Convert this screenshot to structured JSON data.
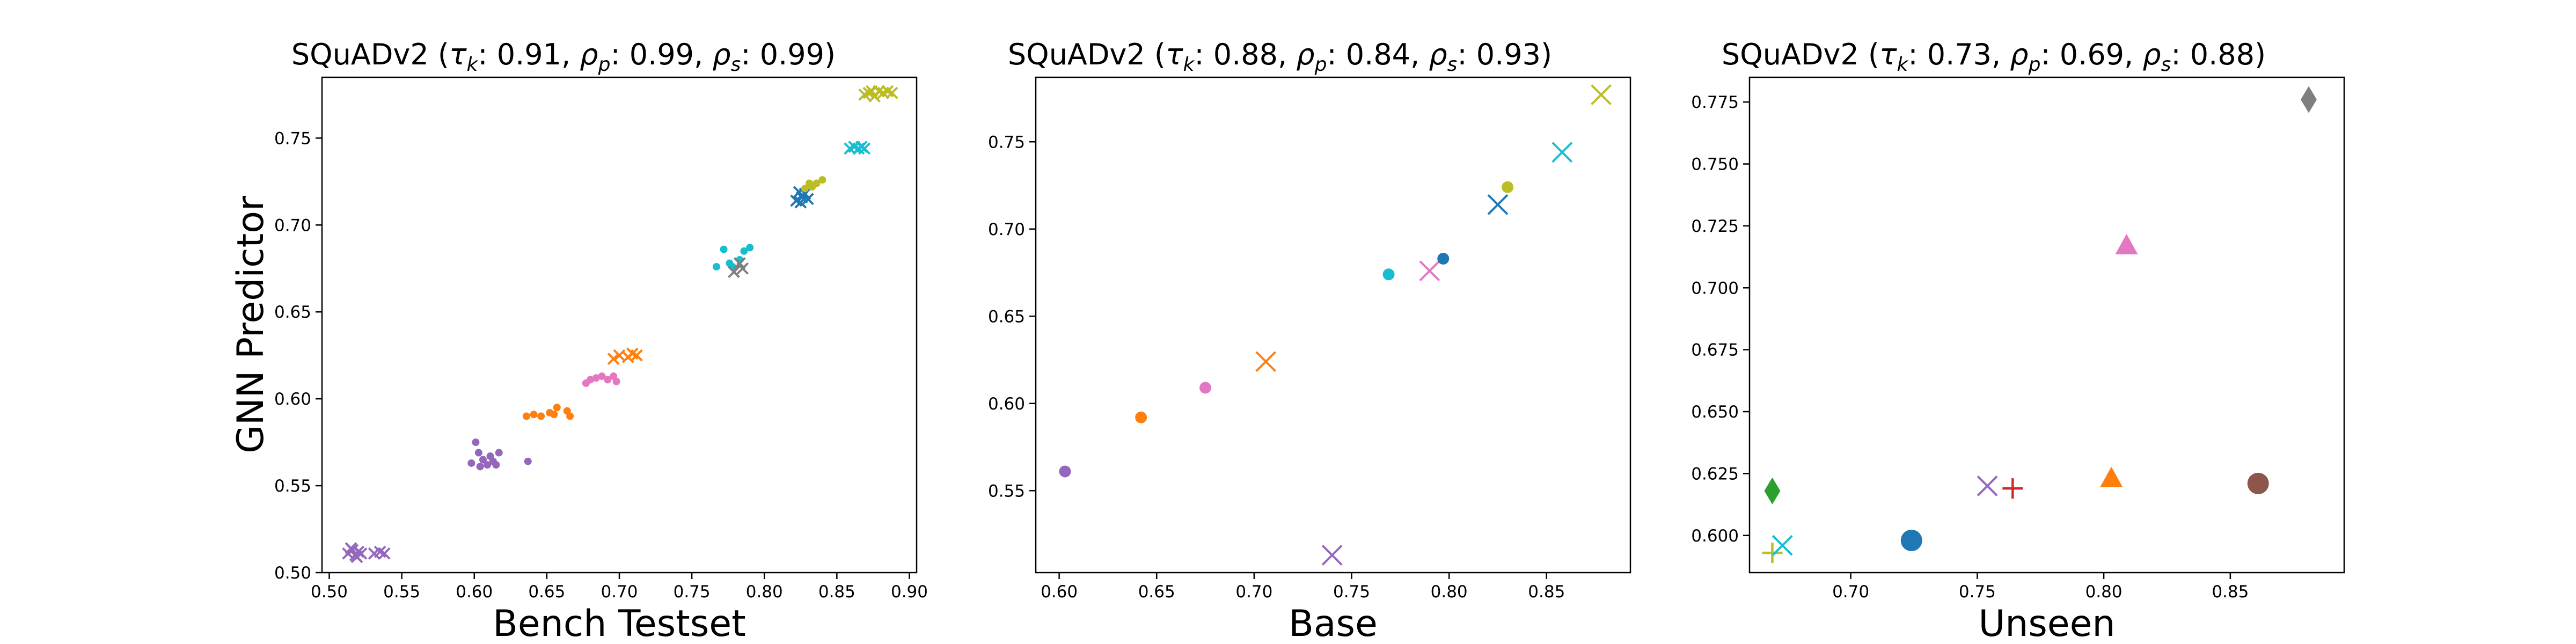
{
  "palette": {
    "purple": "#9467bd",
    "orange": "#ff7f0e",
    "pink": "#e377c2",
    "cyan": "#17becf",
    "gray": "#7f7f7f",
    "blue": "#1f77b4",
    "olive": "#bcbd22",
    "green": "#2ca02c",
    "brown": "#8c564b",
    "red": "#d62728"
  },
  "chart_data": [
    {
      "type": "scatter",
      "title": {
        "dataset": "SQuADv2",
        "tau_k": "0.91",
        "rho_p": "0.99",
        "rho_s": "0.99"
      },
      "xlabel": "Bench Testset",
      "ylabel": "GNN Predictor",
      "xlim": [
        0.495,
        0.905
      ],
      "ylim": [
        0.5,
        0.785
      ],
      "xticks": [
        "0.50",
        "0.55",
        "0.60",
        "0.65",
        "0.70",
        "0.75",
        "0.80",
        "0.85",
        "0.90"
      ],
      "yticks": [
        "0.50",
        "0.55",
        "0.60",
        "0.65",
        "0.70",
        "0.75"
      ],
      "series": [
        {
          "marker": "x",
          "color": "purple",
          "points": [
            [
              0.513,
              0.511
            ],
            [
              0.516,
              0.513
            ],
            [
              0.518,
              0.51
            ],
            [
              0.52,
              0.512
            ],
            [
              0.515,
              0.514
            ],
            [
              0.522,
              0.511
            ],
            [
              0.519,
              0.509
            ],
            [
              0.531,
              0.511
            ],
            [
              0.535,
              0.512
            ],
            [
              0.538,
              0.511
            ]
          ]
        },
        {
          "marker": "dot",
          "color": "purple",
          "points": [
            [
              0.598,
              0.563
            ],
            [
              0.601,
              0.575
            ],
            [
              0.603,
              0.569
            ],
            [
              0.606,
              0.565
            ],
            [
              0.609,
              0.562
            ],
            [
              0.611,
              0.567
            ],
            [
              0.613,
              0.564
            ],
            [
              0.617,
              0.569
            ],
            [
              0.604,
              0.561
            ],
            [
              0.637,
              0.564
            ],
            [
              0.615,
              0.562
            ]
          ]
        },
        {
          "marker": "dot",
          "color": "orange",
          "points": [
            [
              0.636,
              0.59
            ],
            [
              0.641,
              0.591
            ],
            [
              0.646,
              0.59
            ],
            [
              0.652,
              0.592
            ],
            [
              0.657,
              0.595
            ],
            [
              0.664,
              0.593
            ],
            [
              0.666,
              0.59
            ],
            [
              0.655,
              0.591
            ]
          ]
        },
        {
          "marker": "dot",
          "color": "pink",
          "points": [
            [
              0.677,
              0.609
            ],
            [
              0.68,
              0.611
            ],
            [
              0.684,
              0.612
            ],
            [
              0.688,
              0.613
            ],
            [
              0.692,
              0.611
            ],
            [
              0.696,
              0.613
            ],
            [
              0.698,
              0.61
            ]
          ]
        },
        {
          "marker": "x",
          "color": "orange",
          "points": [
            [
              0.696,
              0.623
            ],
            [
              0.7,
              0.625
            ],
            [
              0.706,
              0.624
            ],
            [
              0.709,
              0.626
            ],
            [
              0.712,
              0.625
            ]
          ]
        },
        {
          "marker": "dot",
          "color": "cyan",
          "points": [
            [
              0.767,
              0.676
            ],
            [
              0.772,
              0.686
            ],
            [
              0.776,
              0.678
            ],
            [
              0.778,
              0.676
            ],
            [
              0.783,
              0.68
            ],
            [
              0.786,
              0.685
            ],
            [
              0.79,
              0.687
            ]
          ]
        },
        {
          "marker": "x",
          "color": "gray",
          "points": [
            [
              0.779,
              0.673
            ],
            [
              0.783,
              0.678
            ],
            [
              0.785,
              0.675
            ]
          ]
        },
        {
          "marker": "x",
          "color": "blue",
          "points": [
            [
              0.822,
              0.714
            ],
            [
              0.824,
              0.719
            ],
            [
              0.826,
              0.716
            ],
            [
              0.828,
              0.718
            ],
            [
              0.83,
              0.715
            ],
            [
              0.825,
              0.713
            ]
          ]
        },
        {
          "marker": "dot",
          "color": "olive",
          "points": [
            [
              0.828,
              0.721
            ],
            [
              0.831,
              0.724
            ],
            [
              0.836,
              0.724
            ],
            [
              0.84,
              0.726
            ],
            [
              0.833,
              0.722
            ]
          ]
        },
        {
          "marker": "x",
          "color": "cyan",
          "points": [
            [
              0.859,
              0.744
            ],
            [
              0.862,
              0.745
            ],
            [
              0.865,
              0.744
            ],
            [
              0.867,
              0.745
            ],
            [
              0.869,
              0.744
            ]
          ]
        },
        {
          "marker": "x",
          "color": "olive",
          "points": [
            [
              0.869,
              0.775
            ],
            [
              0.872,
              0.776
            ],
            [
              0.876,
              0.774
            ],
            [
              0.879,
              0.777
            ],
            [
              0.882,
              0.776
            ],
            [
              0.885,
              0.777
            ],
            [
              0.888,
              0.776
            ],
            [
              0.874,
              0.777
            ]
          ]
        }
      ]
    },
    {
      "type": "scatter",
      "title": {
        "dataset": "SQuADv2",
        "tau_k": "0.88",
        "rho_p": "0.84",
        "rho_s": "0.93"
      },
      "xlabel": "Base",
      "ylabel": "",
      "xlim": [
        0.588,
        0.893
      ],
      "ylim": [
        0.503,
        0.787
      ],
      "xticks": [
        "0.60",
        "0.65",
        "0.70",
        "0.75",
        "0.80",
        "0.85"
      ],
      "yticks": [
        "0.55",
        "0.60",
        "0.65",
        "0.70",
        "0.75"
      ],
      "series": [
        {
          "marker": "dot",
          "color": "purple",
          "points": [
            [
              0.603,
              0.561
            ]
          ]
        },
        {
          "marker": "dot",
          "color": "orange",
          "points": [
            [
              0.642,
              0.592
            ]
          ]
        },
        {
          "marker": "dot",
          "color": "pink",
          "points": [
            [
              0.675,
              0.609
            ]
          ]
        },
        {
          "marker": "x",
          "color": "orange",
          "points": [
            [
              0.706,
              0.624
            ]
          ]
        },
        {
          "marker": "x",
          "color": "purple",
          "points": [
            [
              0.74,
              0.513
            ]
          ]
        },
        {
          "marker": "dot",
          "color": "cyan",
          "points": [
            [
              0.769,
              0.674
            ]
          ]
        },
        {
          "marker": "x",
          "color": "pink",
          "points": [
            [
              0.79,
              0.676
            ]
          ]
        },
        {
          "marker": "dot",
          "color": "blue",
          "points": [
            [
              0.797,
              0.683
            ]
          ]
        },
        {
          "marker": "x",
          "color": "blue",
          "points": [
            [
              0.825,
              0.714
            ]
          ]
        },
        {
          "marker": "dot",
          "color": "olive",
          "points": [
            [
              0.83,
              0.724
            ]
          ]
        },
        {
          "marker": "x",
          "color": "cyan",
          "points": [
            [
              0.858,
              0.744
            ]
          ]
        },
        {
          "marker": "x",
          "color": "olive",
          "points": [
            [
              0.878,
              0.777
            ]
          ]
        }
      ]
    },
    {
      "type": "scatter",
      "title": {
        "dataset": "SQuADv2",
        "tau_k": "0.73",
        "rho_p": "0.69",
        "rho_s": "0.88"
      },
      "xlabel": "Unseen",
      "ylabel": "",
      "xlim": [
        0.66,
        0.895
      ],
      "ylim": [
        0.585,
        0.785
      ],
      "xticks": [
        "0.70",
        "0.75",
        "0.80",
        "0.85"
      ],
      "yticks": [
        "0.600",
        "0.625",
        "0.650",
        "0.675",
        "0.700",
        "0.725",
        "0.750",
        "0.775"
      ],
      "series": [
        {
          "marker": "diamond",
          "color": "green",
          "points": [
            [
              0.669,
              0.618
            ]
          ]
        },
        {
          "marker": "plus",
          "color": "olive",
          "points": [
            [
              0.669,
              0.593
            ]
          ]
        },
        {
          "marker": "x",
          "color": "cyan",
          "points": [
            [
              0.673,
              0.596
            ]
          ]
        },
        {
          "marker": "bigdot",
          "color": "blue",
          "points": [
            [
              0.724,
              0.598
            ]
          ]
        },
        {
          "marker": "x",
          "color": "purple",
          "points": [
            [
              0.754,
              0.62
            ]
          ]
        },
        {
          "marker": "plus",
          "color": "red",
          "points": [
            [
              0.764,
              0.619
            ]
          ]
        },
        {
          "marker": "triangle",
          "color": "orange",
          "points": [
            [
              0.803,
              0.623
            ]
          ]
        },
        {
          "marker": "triangle",
          "color": "pink",
          "points": [
            [
              0.809,
              0.717
            ]
          ]
        },
        {
          "marker": "bigdot",
          "color": "brown",
          "points": [
            [
              0.861,
              0.621
            ]
          ]
        },
        {
          "marker": "diamond",
          "color": "gray",
          "points": [
            [
              0.881,
              0.776
            ]
          ]
        }
      ]
    }
  ]
}
